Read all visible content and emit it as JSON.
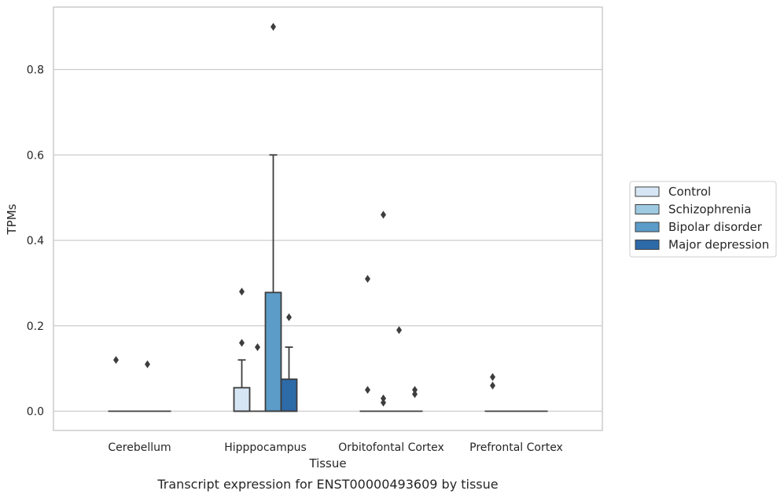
{
  "chart_data": {
    "type": "box",
    "title": "",
    "caption": "Transcript expression for ENST00000493609 by tissue",
    "xlabel": "Tissue",
    "ylabel": "TPMs",
    "ylim": [
      -0.045,
      0.945
    ],
    "yticks": [
      0.0,
      0.2,
      0.4,
      0.6,
      0.8
    ],
    "ytick_labels": [
      "0.0",
      "0.2",
      "0.4",
      "0.6",
      "0.8"
    ],
    "grid": "horizontal",
    "legend_position": "right",
    "categories": [
      "Cerebellum",
      "Hipppocampus",
      "Orbitofontal Cortex",
      "Prefrontal Cortex"
    ],
    "series": [
      {
        "name": "Control",
        "color": "#d7e6f4",
        "boxes": [
          {
            "category": "Cerebellum",
            "q1": 0,
            "median": 0,
            "q3": 0,
            "whislo": 0,
            "whishi": 0,
            "fliers": [
              0.12
            ]
          },
          {
            "category": "Hipppocampus",
            "q1": 0,
            "median": 0,
            "q3": 0.055,
            "whislo": 0,
            "whishi": 0.12,
            "fliers": [
              0.16,
              0.28
            ]
          },
          {
            "category": "Orbitofontal Cortex",
            "q1": 0,
            "median": 0,
            "q3": 0,
            "whislo": 0,
            "whishi": 0,
            "fliers": [
              0.05,
              0.31
            ]
          },
          {
            "category": "Prefrontal Cortex",
            "q1": 0,
            "median": 0,
            "q3": 0,
            "whislo": 0,
            "whishi": 0,
            "fliers": [
              0.06,
              0.08
            ]
          }
        ]
      },
      {
        "name": "Schizophrenia",
        "color": "#9ecae1",
        "boxes": [
          {
            "category": "Cerebellum",
            "q1": 0,
            "median": 0,
            "q3": 0,
            "whislo": 0,
            "whishi": 0,
            "fliers": []
          },
          {
            "category": "Hipppocampus",
            "q1": 0,
            "median": 0,
            "q3": 0,
            "whislo": 0,
            "whishi": 0,
            "fliers": [
              0.15
            ]
          },
          {
            "category": "Orbitofontal Cortex",
            "q1": 0,
            "median": 0,
            "q3": 0,
            "whislo": 0,
            "whishi": 0,
            "fliers": [
              0.02,
              0.03,
              0.46
            ]
          },
          {
            "category": "Prefrontal Cortex",
            "q1": 0,
            "median": 0,
            "q3": 0,
            "whislo": 0,
            "whishi": 0,
            "fliers": []
          }
        ]
      },
      {
        "name": "Bipolar disorder",
        "color": "#5b9cc9",
        "boxes": [
          {
            "category": "Cerebellum",
            "q1": 0,
            "median": 0,
            "q3": 0,
            "whislo": 0,
            "whishi": 0,
            "fliers": [
              0.11
            ]
          },
          {
            "category": "Hipppocampus",
            "q1": 0,
            "median": 0,
            "q3": 0.278,
            "whislo": 0,
            "whishi": 0.6,
            "fliers": [
              0.9
            ]
          },
          {
            "category": "Orbitofontal Cortex",
            "q1": 0,
            "median": 0,
            "q3": 0,
            "whislo": 0,
            "whishi": 0,
            "fliers": [
              0.19
            ]
          },
          {
            "category": "Prefrontal Cortex",
            "q1": 0,
            "median": 0,
            "q3": 0,
            "whislo": 0,
            "whishi": 0,
            "fliers": []
          }
        ]
      },
      {
        "name": "Major depression",
        "color": "#2d6aa8",
        "boxes": [
          {
            "category": "Cerebellum",
            "q1": 0,
            "median": 0,
            "q3": 0,
            "whislo": 0,
            "whishi": 0,
            "fliers": []
          },
          {
            "category": "Hipppocampus",
            "q1": 0,
            "median": 0,
            "q3": 0.075,
            "whislo": 0,
            "whishi": 0.15,
            "fliers": [
              0.22
            ]
          },
          {
            "category": "Orbitofontal Cortex",
            "q1": 0,
            "median": 0,
            "q3": 0,
            "whislo": 0,
            "whishi": 0,
            "fliers": [
              0.04,
              0.05
            ]
          },
          {
            "category": "Prefrontal Cortex",
            "q1": 0,
            "median": 0,
            "q3": 0,
            "whislo": 0,
            "whishi": 0,
            "fliers": []
          }
        ]
      }
    ]
  }
}
